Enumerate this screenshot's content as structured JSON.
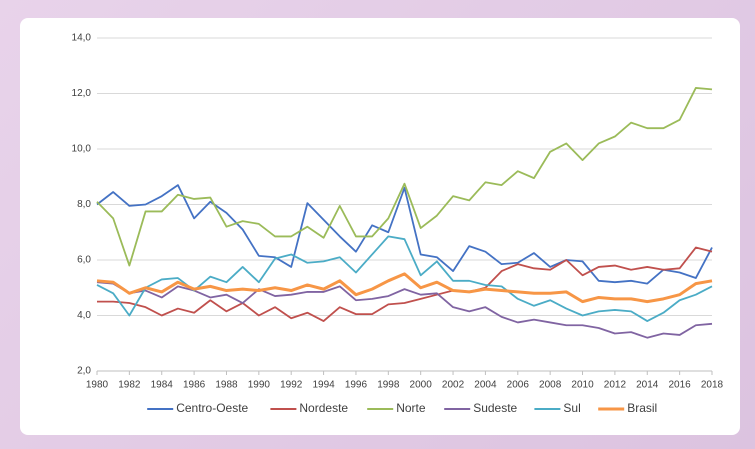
{
  "chart_data": {
    "type": "line",
    "x": [
      1980,
      1981,
      1982,
      1983,
      1984,
      1985,
      1986,
      1987,
      1988,
      1989,
      1990,
      1991,
      1992,
      1993,
      1994,
      1995,
      1996,
      1997,
      1998,
      1999,
      2000,
      2001,
      2002,
      2003,
      2004,
      2005,
      2006,
      2007,
      2008,
      2009,
      2010,
      2011,
      2012,
      2013,
      2014,
      2015,
      2016,
      2017,
      2018
    ],
    "xlim": [
      1980,
      2018
    ],
    "xticks": [
      1980,
      1982,
      1984,
      1986,
      1988,
      1990,
      1992,
      1994,
      1996,
      1998,
      2000,
      2002,
      2004,
      2006,
      2008,
      2010,
      2012,
      2014,
      2016,
      2018
    ],
    "ylim": [
      2,
      14
    ],
    "yticks": [
      {
        "value": 2,
        "label": "2,0"
      },
      {
        "value": 4,
        "label": "4,0"
      },
      {
        "value": 6,
        "label": "6,0"
      },
      {
        "value": 8,
        "label": "8,0"
      },
      {
        "value": 10,
        "label": "10,0"
      },
      {
        "value": 12,
        "label": "12,0"
      },
      {
        "value": 14,
        "label": "14,0"
      }
    ],
    "grid": true,
    "legend": "bottom",
    "series": [
      {
        "name": "Centro-Oeste",
        "color": "#4472c4",
        "values": [
          8.0,
          8.45,
          7.95,
          8.0,
          8.3,
          8.7,
          7.5,
          8.1,
          7.7,
          7.1,
          6.15,
          6.1,
          5.75,
          8.05,
          7.45,
          6.85,
          6.3,
          7.25,
          7.0,
          8.6,
          6.2,
          6.1,
          5.6,
          6.5,
          6.3,
          5.85,
          5.9,
          6.25,
          5.75,
          6.0,
          5.95,
          5.25,
          5.2,
          5.25,
          5.15,
          5.65,
          5.55,
          5.35,
          6.45
        ]
      },
      {
        "name": "Nordeste",
        "color": "#c0504d",
        "values": [
          4.5,
          4.5,
          4.45,
          4.3,
          4.0,
          4.25,
          4.1,
          4.55,
          4.15,
          4.45,
          4.0,
          4.3,
          3.9,
          4.1,
          3.8,
          4.3,
          4.05,
          4.05,
          4.4,
          4.45,
          4.6,
          4.75,
          4.9,
          4.85,
          5.0,
          5.6,
          5.85,
          5.7,
          5.65,
          6.0,
          5.45,
          5.75,
          5.8,
          5.65,
          5.75,
          5.65,
          5.7,
          6.45,
          6.3
        ]
      },
      {
        "name": "Norte",
        "color": "#9bbb59",
        "values": [
          8.1,
          7.5,
          5.8,
          7.75,
          7.75,
          8.35,
          8.2,
          8.25,
          7.2,
          7.4,
          7.3,
          6.85,
          6.85,
          7.2,
          6.8,
          7.95,
          6.85,
          6.85,
          7.5,
          8.75,
          7.15,
          7.6,
          8.3,
          8.15,
          8.8,
          8.7,
          9.2,
          8.95,
          9.9,
          10.2,
          9.6,
          10.2,
          10.45,
          10.95,
          10.75,
          10.75,
          11.05,
          12.2,
          12.15
        ]
      },
      {
        "name": "Sudeste",
        "color": "#8064a2",
        "values": [
          5.2,
          5.15,
          4.8,
          4.9,
          4.65,
          5.05,
          4.9,
          4.65,
          4.75,
          4.45,
          4.95,
          4.7,
          4.75,
          4.85,
          4.85,
          5.05,
          4.55,
          4.6,
          4.7,
          4.95,
          4.75,
          4.8,
          4.3,
          4.15,
          4.3,
          3.95,
          3.75,
          3.85,
          3.75,
          3.65,
          3.65,
          3.55,
          3.35,
          3.4,
          3.2,
          3.35,
          3.3,
          3.65,
          3.7
        ]
      },
      {
        "name": "Sul",
        "color": "#4bacc6",
        "values": [
          5.1,
          4.8,
          4.0,
          5.0,
          5.3,
          5.35,
          4.9,
          5.4,
          5.2,
          5.75,
          5.2,
          6.05,
          6.2,
          5.9,
          5.95,
          6.1,
          5.55,
          6.2,
          6.85,
          6.75,
          5.45,
          5.95,
          5.25,
          5.25,
          5.1,
          5.05,
          4.6,
          4.35,
          4.55,
          4.25,
          4.0,
          4.15,
          4.2,
          4.15,
          3.8,
          4.1,
          4.55,
          4.75,
          5.05
        ]
      },
      {
        "name": "Brasil",
        "color": "#f79646",
        "values": [
          5.25,
          5.2,
          4.8,
          5.0,
          4.85,
          5.2,
          4.95,
          5.05,
          4.9,
          4.95,
          4.9,
          5.0,
          4.9,
          5.1,
          4.95,
          5.25,
          4.75,
          4.95,
          5.25,
          5.5,
          5.0,
          5.2,
          4.9,
          4.85,
          4.95,
          4.9,
          4.85,
          4.8,
          4.8,
          4.85,
          4.5,
          4.65,
          4.6,
          4.6,
          4.5,
          4.6,
          4.75,
          5.15,
          5.25
        ]
      }
    ]
  }
}
